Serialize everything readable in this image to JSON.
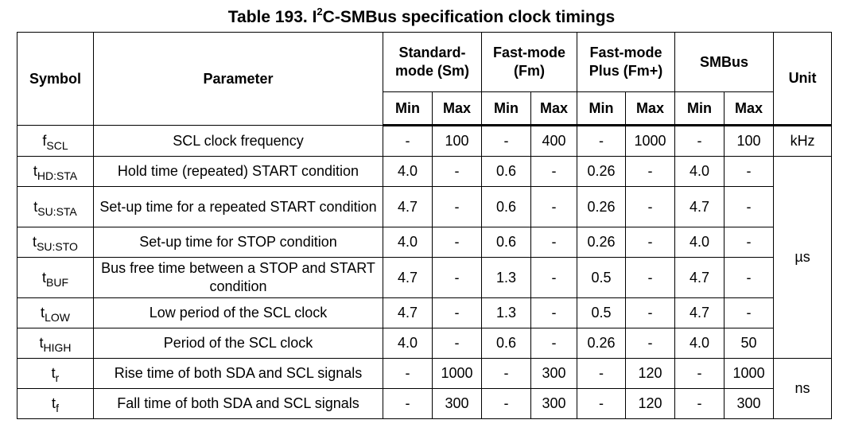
{
  "title": {
    "prefix": "Table 193. I",
    "sup": "2",
    "suffix": "C-SMBus specification clock timings"
  },
  "headers": {
    "symbol": "Symbol",
    "parameter": "Parameter",
    "groups": [
      "Standard-\nmode (Sm)",
      "Fast-mode\n(Fm)",
      "Fast-mode\nPlus (Fm+)",
      "SMBus"
    ],
    "unit": "Unit",
    "min": "Min",
    "max": "Max"
  },
  "rows": [
    {
      "sym": "f",
      "sub": "SCL",
      "param": "SCL clock frequency",
      "vals": [
        "-",
        "100",
        "-",
        "400",
        "-",
        "1000",
        "-",
        "100"
      ]
    },
    {
      "sym": "t",
      "sub": "HD:STA",
      "param": "Hold time (repeated) START condition",
      "vals": [
        "4.0",
        "-",
        "0.6",
        "-",
        "0.26",
        "-",
        "4.0",
        "-"
      ]
    },
    {
      "sym": "t",
      "sub": "SU:STA",
      "param": "Set-up time for a repeated START condition",
      "vals": [
        "4.7",
        "-",
        "0.6",
        "-",
        "0.26",
        "-",
        "4.7",
        "-"
      ]
    },
    {
      "sym": "t",
      "sub": "SU:STO",
      "param": "Set-up time for STOP condition",
      "vals": [
        "4.0",
        "-",
        "0.6",
        "-",
        "0.26",
        "-",
        "4.0",
        "-"
      ]
    },
    {
      "sym": "t",
      "sub": "BUF",
      "param": "Bus free time between a STOP and START condition",
      "vals": [
        "4.7",
        "-",
        "1.3",
        "-",
        "0.5",
        "-",
        "4.7",
        "-"
      ]
    },
    {
      "sym": "t",
      "sub": "LOW",
      "param": "Low period of the SCL clock",
      "vals": [
        "4.7",
        "-",
        "1.3",
        "-",
        "0.5",
        "-",
        "4.7",
        "-"
      ]
    },
    {
      "sym": "t",
      "sub": "HIGH",
      "param": "Period of the SCL clock",
      "vals": [
        "4.0",
        "-",
        "0.6",
        "-",
        "0.26",
        "-",
        "4.0",
        "50"
      ]
    },
    {
      "sym": "t",
      "sub": "r",
      "param": "Rise time of both SDA and SCL signals",
      "vals": [
        "-",
        "1000",
        "-",
        "300",
        "-",
        "120",
        "-",
        "1000"
      ]
    },
    {
      "sym": "t",
      "sub": "f",
      "param": "Fall time of both SDA and SCL signals",
      "vals": [
        "-",
        "300",
        "-",
        "300",
        "-",
        "120",
        "-",
        "300"
      ]
    }
  ],
  "units": {
    "khz": "kHz",
    "us": "µs",
    "ns": "ns"
  }
}
